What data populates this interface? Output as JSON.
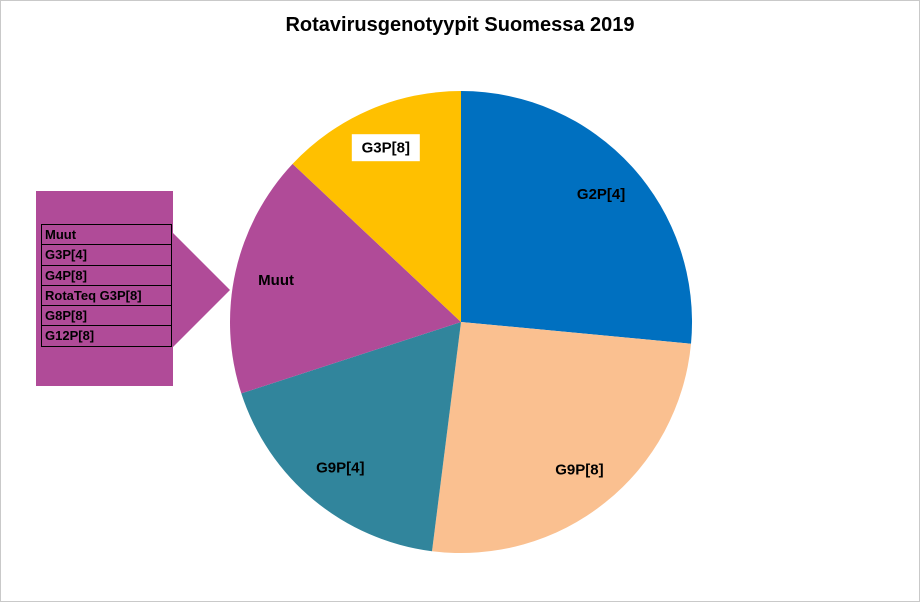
{
  "chart_data": {
    "type": "pie",
    "title": "Rotavirusgenotyypit Suomessa 2019",
    "direction": "clockwise",
    "start_angle_deg": 0,
    "legend": "none",
    "value_unit": "percent-estimated",
    "slices": [
      {
        "label": "G2P[4]",
        "value": 26.5,
        "color": "#0070C0",
        "label_box": false
      },
      {
        "label": "G9P[8]",
        "value": 25.5,
        "color": "#FAC090",
        "label_box": false
      },
      {
        "label": "G9P[4]",
        "value": 18,
        "color": "#31859C",
        "label_box": false
      },
      {
        "label": "Muut",
        "value": 17,
        "color": "#B04B98",
        "label_box": false
      },
      {
        "label": "G3P[8]",
        "value": 13,
        "color": "#FFC000",
        "label_box": true
      }
    ],
    "callout": {
      "color": "#B04B98",
      "points_to": "Muut",
      "items": [
        "Muut",
        "G3P[4]",
        "G4P[8]",
        "RotaTeq G3P[8]",
        "G8P[8]",
        "G12P[8]"
      ]
    }
  }
}
